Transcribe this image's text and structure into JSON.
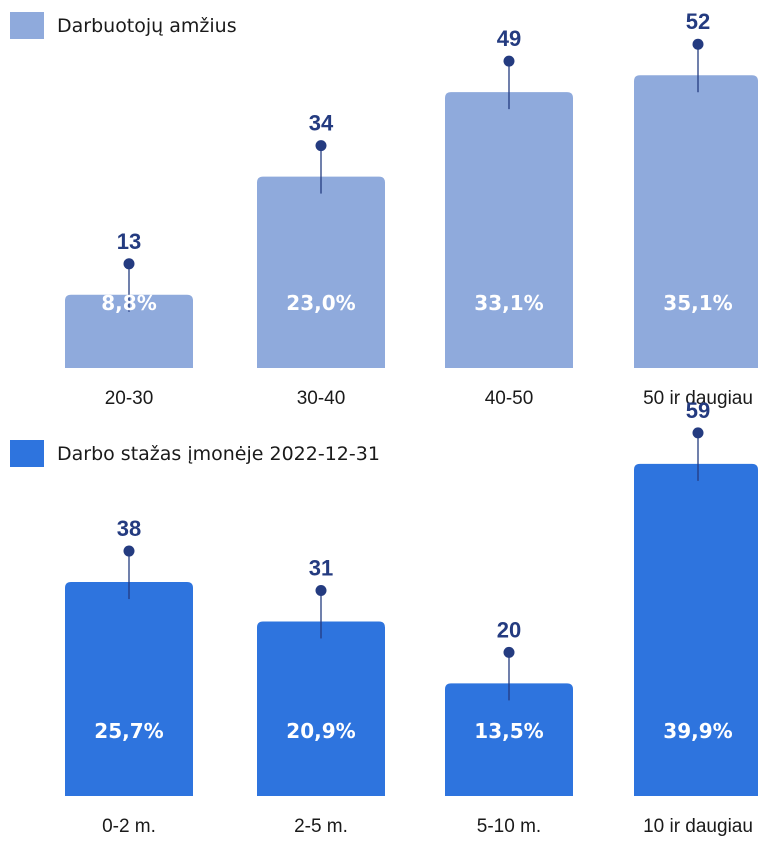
{
  "chart_data": [
    {
      "type": "bar",
      "title": "Darbuotojų amžius",
      "color": "#8faadc",
      "categories": [
        "20-30",
        "30-40",
        "40-50",
        "50 ir daugiau"
      ],
      "values": [
        13,
        34,
        49,
        52
      ],
      "percentages": [
        "8,8%",
        "23,0%",
        "33,1%",
        "35,1%"
      ],
      "value_labels": [
        "13",
        "34",
        "49",
        "52"
      ]
    },
    {
      "type": "bar",
      "title": "Darbo stažas įmonėje 2022-12-31",
      "color": "#2e74de",
      "categories": [
        "0-2 m.",
        "2-5 m.",
        "5-10 m.",
        "10 ir daugiau"
      ],
      "values": [
        38,
        31,
        20,
        59
      ],
      "percentages": [
        "25,7%",
        "20,9%",
        "13,5%",
        "39,9%"
      ],
      "value_labels": [
        "38",
        "31",
        "20",
        "59"
      ]
    }
  ],
  "colors": {
    "marker": "#243b80",
    "label_text": "#ffffff"
  }
}
